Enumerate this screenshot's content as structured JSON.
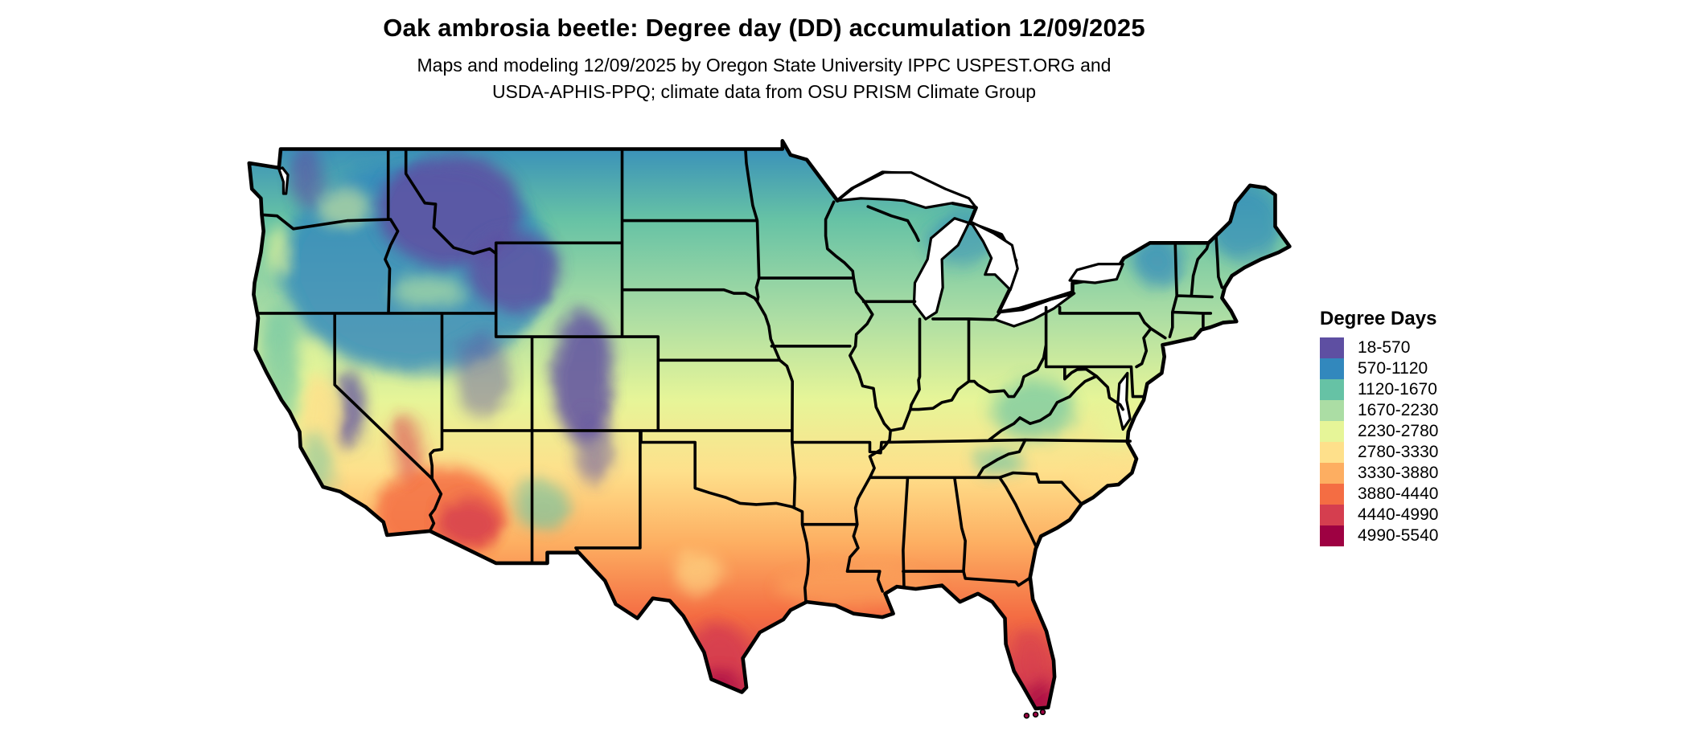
{
  "header": {
    "title": "Oak ambrosia beetle: Degree day (DD) accumulation 12/09/2025",
    "subtitle_line1": "Maps and modeling 12/09/2025 by Oregon State University IPPC USPEST.ORG and",
    "subtitle_line2": "USDA-APHIS-PPQ; climate data from OSU PRISM Climate Group"
  },
  "legend": {
    "title": "Degree Days",
    "items": [
      {
        "label": "18-570",
        "color": "#5e4fa2"
      },
      {
        "label": "570-1120",
        "color": "#3288bd"
      },
      {
        "label": "1120-1670",
        "color": "#66c2a5"
      },
      {
        "label": "1670-2230",
        "color": "#abdda4"
      },
      {
        "label": "2230-2780",
        "color": "#e6f598"
      },
      {
        "label": "2780-3330",
        "color": "#fee08b"
      },
      {
        "label": "3330-3880",
        "color": "#fdae61"
      },
      {
        "label": "3880-4440",
        "color": "#f46d43"
      },
      {
        "label": "4440-4990",
        "color": "#d53e4f"
      },
      {
        "label": "4990-5540",
        "color": "#9e0142"
      }
    ]
  },
  "chart_data": {
    "type": "heatmap",
    "subtype": "choropleth-raster-map",
    "region": "Contiguous United States with state boundaries; Great Lakes shown white",
    "title": "Oak ambrosia beetle: Degree day (DD) accumulation 12/09/2025",
    "date_shown": "12/09/2025",
    "legend_title": "Degree Days",
    "legend_position": "right",
    "value_range_dd": [
      18,
      5540
    ],
    "class_width_dd": 550,
    "classes": [
      {
        "range": "18-570",
        "color": "#5e4fa2"
      },
      {
        "range": "570-1120",
        "color": "#3288bd"
      },
      {
        "range": "1120-1670",
        "color": "#66c2a5"
      },
      {
        "range": "1670-2230",
        "color": "#abdda4"
      },
      {
        "range": "2230-2780",
        "color": "#e6f598"
      },
      {
        "range": "2780-3330",
        "color": "#fee08b"
      },
      {
        "range": "3330-3880",
        "color": "#fdae61"
      },
      {
        "range": "3880-4440",
        "color": "#f46d43"
      },
      {
        "range": "4440-4990",
        "color": "#d53e4f"
      },
      {
        "range": "4990-5540",
        "color": "#9e0142"
      }
    ],
    "regional_pattern_dd": {
      "northern_rockies_cascades_sierra_colorado_rockies": "18-570",
      "montana_north_dakota_northern_minnesota_maine_great_basin_north": "570-1120",
      "pacific_northwest_upper_midwest_new_england_new_york": "1120-1670",
      "corn_belt_nebraska_iowa_pennsylvania_appalachians": "1670-2230",
      "kansas_missouri_ohio_valley_virginia": "2230-2780",
      "oklahoma_tennessee_california_central_valley_carolinas": "2780-3330",
      "north_texas_gulf_states_interior_georgia": "3330-3880",
      "gulf_coast_central_texas_north_florida_southwest_deserts": "3880-4440",
      "south_texas_southern_arizona_south_florida": "4440-4990",
      "rio_grande_valley_florida_keys": "4990-5540"
    }
  }
}
